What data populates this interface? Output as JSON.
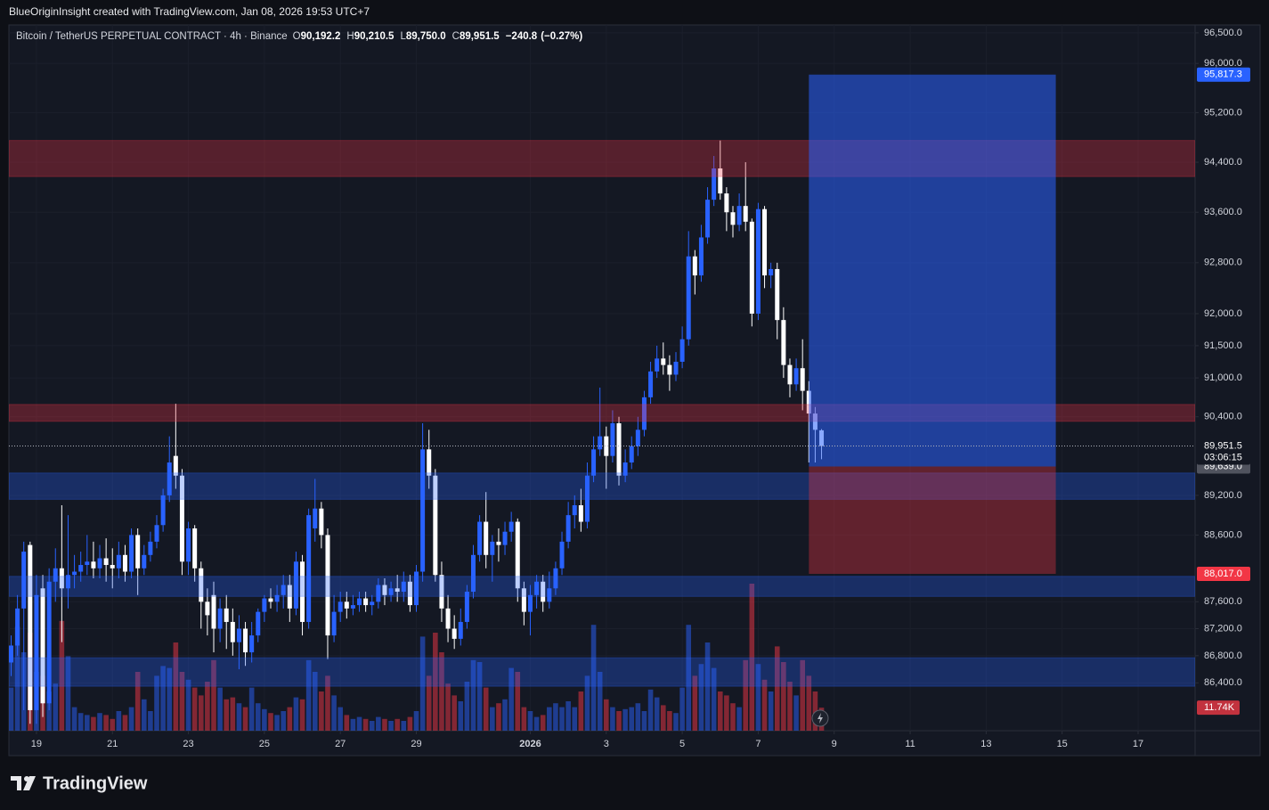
{
  "header": "BlueOriginInsight created with TradingView.com, Jan 08, 2026 19:53 UTC+7",
  "brand": "TradingView",
  "chart_data": {
    "type": "candlestick",
    "title": "Bitcoin / TetherUS PERPETUAL CONTRACT · 4h · Binance",
    "legend": [
      {
        "key": "O",
        "value": 90192.2,
        "label": "90,192.2"
      },
      {
        "key": "H",
        "value": 90210.5,
        "label": "90,210.5"
      },
      {
        "key": "L",
        "value": 89750.0,
        "label": "89,750.0"
      },
      {
        "key": "C",
        "value": 89951.5,
        "label": "89,951.5"
      }
    ],
    "change": {
      "value": -240.8,
      "label": "−240.8"
    },
    "change_pct": {
      "value": -0.27,
      "label": "(−0.27%)"
    },
    "up_color": "#2962ff",
    "down_color": "#ffffff",
    "open": [
      86700,
      86950,
      87500,
      88450,
      86000,
      87800,
      86100,
      87900,
      88100,
      87800,
      88000,
      88050,
      88150,
      88200,
      88100,
      88250,
      88150,
      88100,
      88300,
      88050,
      88600,
      88100,
      88300,
      88500,
      88750,
      89200,
      89800,
      89500,
      88200,
      88700,
      88100,
      87600,
      87700,
      87200,
      87500,
      87300,
      87000,
      87200,
      86850,
      87100,
      87450,
      87650,
      87600,
      87700,
      87850,
      87500,
      88200,
      87300,
      88700,
      89000,
      88600,
      87100,
      87450,
      87600,
      87500,
      87550,
      87650,
      87550,
      87600,
      87850,
      87700,
      87800,
      87750,
      87900,
      87550,
      88050,
      89900,
      89500,
      88000,
      87500,
      87200,
      87050,
      87300,
      87750,
      88300,
      88800,
      88300,
      88500,
      88450,
      88650,
      88800,
      87800,
      87450,
      87700,
      87900,
      87600,
      87800,
      88100,
      88500,
      88900,
      89050,
      88800,
      89500,
      89900,
      90100,
      89800,
      90300,
      89500,
      89700,
      89950,
      90200,
      90700,
      91100,
      91300,
      91200,
      91050,
      91250,
      91600,
      92900,
      92600,
      93200,
      93800,
      94300,
      93900,
      93600,
      93400,
      93700,
      93450,
      92000,
      93650,
      92600,
      92700,
      91900,
      91200,
      90900,
      91150,
      90800,
      90450,
      90192.2
    ],
    "high": [
      87100,
      87700,
      88500,
      88500,
      88000,
      88000,
      88100,
      88400,
      89050,
      88900,
      88300,
      88350,
      88600,
      88500,
      88450,
      88550,
      88400,
      88500,
      88450,
      88700,
      88700,
      88450,
      88650,
      88900,
      89300,
      90100,
      90600,
      89600,
      88800,
      88750,
      88200,
      87800,
      87900,
      87650,
      87700,
      87500,
      87400,
      87300,
      87300,
      87500,
      87700,
      87800,
      87850,
      88000,
      88000,
      88350,
      88300,
      89000,
      89450,
      89100,
      88700,
      87700,
      87750,
      87750,
      87700,
      87750,
      87750,
      87700,
      87950,
      87950,
      87900,
      88000,
      88050,
      88000,
      88150,
      90300,
      90200,
      89600,
      88200,
      87700,
      87400,
      87500,
      87850,
      88450,
      88900,
      89250,
      88600,
      88700,
      88800,
      88950,
      88850,
      87900,
      87850,
      88000,
      88000,
      88050,
      88200,
      88650,
      89100,
      89200,
      89300,
      89700,
      90100,
      90850,
      90250,
      90500,
      90400,
      89900,
      90100,
      90400,
      90800,
      91250,
      91500,
      91550,
      91350,
      91400,
      91800,
      93300,
      93000,
      93400,
      94000,
      94500,
      94750,
      94000,
      93700,
      93900,
      94400,
      93500,
      93750,
      93700,
      92800,
      92800,
      92100,
      91300,
      91300,
      91600,
      90950,
      90550,
      90210.5
    ],
    "low": [
      86500,
      86800,
      86000,
      85800,
      85800,
      85900,
      86000,
      87600,
      87000,
      87500,
      87800,
      87900,
      88000,
      87950,
      87950,
      87900,
      87800,
      87950,
      87900,
      87950,
      87700,
      88000,
      88200,
      88400,
      88650,
      89100,
      89300,
      88000,
      88000,
      87900,
      87200,
      87100,
      86850,
      87000,
      86900,
      86800,
      86600,
      86650,
      86700,
      87000,
      87300,
      87500,
      87450,
      87500,
      87300,
      87400,
      87100,
      87200,
      88500,
      88400,
      86750,
      87000,
      87300,
      87350,
      87400,
      87450,
      87450,
      87400,
      87500,
      87550,
      87600,
      87600,
      87600,
      87450,
      87450,
      87900,
      89300,
      87900,
      87300,
      87000,
      86900,
      86950,
      87200,
      87650,
      88200,
      88100,
      87900,
      88200,
      88300,
      88500,
      87600,
      87250,
      87100,
      87500,
      87450,
      87500,
      87700,
      88000,
      88400,
      88700,
      88650,
      88700,
      89400,
      89800,
      89300,
      89700,
      89350,
      89400,
      89600,
      89800,
      90100,
      90600,
      91000,
      91050,
      90800,
      90950,
      91150,
      91500,
      92300,
      92500,
      93100,
      93700,
      93800,
      93300,
      93200,
      93300,
      93300,
      91800,
      91900,
      92400,
      92400,
      91600,
      91000,
      90700,
      90800,
      90500,
      89700,
      89700,
      89750
    ],
    "close": [
      86950,
      87500,
      88350,
      86000,
      87700,
      86100,
      87900,
      88100,
      87800,
      88000,
      88050,
      88150,
      88200,
      88100,
      88250,
      88150,
      88100,
      88300,
      88050,
      88600,
      88100,
      88300,
      88500,
      88750,
      89200,
      89700,
      89500,
      88200,
      88700,
      88100,
      87600,
      87400,
      87200,
      87500,
      87300,
      87000,
      87200,
      86850,
      87100,
      87450,
      87650,
      87600,
      87700,
      87850,
      87500,
      88200,
      87300,
      88900,
      89000,
      88600,
      87100,
      87450,
      87600,
      87500,
      87550,
      87650,
      87550,
      87600,
      87850,
      87700,
      87800,
      87750,
      87900,
      87550,
      88050,
      89900,
      89500,
      88000,
      87500,
      87200,
      87050,
      87300,
      87750,
      88300,
      88800,
      88300,
      88500,
      88450,
      88650,
      88800,
      87800,
      87450,
      87700,
      87900,
      87600,
      87800,
      88100,
      88500,
      88900,
      89050,
      88800,
      89500,
      89900,
      90100,
      89800,
      90300,
      89500,
      89700,
      89950,
      90200,
      90700,
      91100,
      91300,
      91200,
      91050,
      91250,
      91600,
      92900,
      92600,
      93200,
      93800,
      94300,
      93900,
      93600,
      93400,
      93700,
      93450,
      92000,
      93650,
      92600,
      92700,
      91900,
      91200,
      90900,
      91150,
      90800,
      90450,
      90200,
      89951.5
    ],
    "volume": {
      "up_color": "rgba(41,98,255,0.5)",
      "down_color": "rgba(242,54,69,0.5)",
      "values": [
        22000,
        53000,
        40000,
        50000,
        30000,
        28000,
        20000,
        24000,
        56000,
        38000,
        12000,
        9000,
        8000,
        7000,
        9000,
        8000,
        6000,
        10000,
        8000,
        12000,
        30000,
        16000,
        10000,
        28000,
        33000,
        32000,
        45000,
        30000,
        26000,
        22000,
        18000,
        25000,
        36000,
        22000,
        16000,
        17000,
        14000,
        12000,
        22000,
        14000,
        11000,
        9000,
        8000,
        10000,
        12000,
        17000,
        16000,
        36000,
        30000,
        20000,
        28000,
        18000,
        12000,
        8000,
        6000,
        7000,
        6000,
        5000,
        7000,
        6000,
        5000,
        6000,
        5000,
        7000,
        10000,
        48000,
        28000,
        50000,
        40000,
        24000,
        18000,
        15000,
        25000,
        36000,
        35000,
        22000,
        12000,
        14000,
        16000,
        32000,
        30000,
        12000,
        10000,
        7000,
        8000,
        12000,
        14000,
        12000,
        15000,
        12000,
        20000,
        28000,
        54000,
        30000,
        16000,
        12000,
        10000,
        11000,
        12000,
        14000,
        10000,
        21000,
        17000,
        13000,
        10000,
        9000,
        22000,
        54000,
        28000,
        34000,
        45000,
        32000,
        20000,
        18000,
        14000,
        12000,
        36000,
        75000,
        34000,
        26000,
        20000,
        43000,
        35000,
        25000,
        18000,
        36000,
        28000,
        20000,
        11740
      ],
      "last_label": "11.74K"
    },
    "log_scale": true,
    "ylim": [
      85700,
      96630
    ],
    "yticks": [
      {
        "value": 96500,
        "label": "96,500.0"
      },
      {
        "value": 96000,
        "label": "96,000.0"
      },
      {
        "value": 95200,
        "label": "95,200.0"
      },
      {
        "value": 94400,
        "label": "94,400.0"
      },
      {
        "value": 93600,
        "label": "93,600.0"
      },
      {
        "value": 92800,
        "label": "92,800.0"
      },
      {
        "value": 92000,
        "label": "92,000.0"
      },
      {
        "value": 91500,
        "label": "91,500.0"
      },
      {
        "value": 91000,
        "label": "91,000.0"
      },
      {
        "value": 90400,
        "label": "90,400.0"
      },
      {
        "value": 89200,
        "label": "89,200.0"
      },
      {
        "value": 88600,
        "label": "88,600.0"
      },
      {
        "value": 87600,
        "label": "87,600.0"
      },
      {
        "value": 87200,
        "label": "87,200.0"
      },
      {
        "value": 86800,
        "label": "86,800.0"
      },
      {
        "value": 86400,
        "label": "86,400.0"
      }
    ],
    "xlim": [
      -0.35,
      187
    ],
    "xticks": [
      {
        "value": 4,
        "label": "19"
      },
      {
        "value": 16,
        "label": "21"
      },
      {
        "value": 28,
        "label": "23"
      },
      {
        "value": 40,
        "label": "25"
      },
      {
        "value": 52,
        "label": "27"
      },
      {
        "value": 64,
        "label": "29"
      },
      {
        "value": 82,
        "label": "2026"
      },
      {
        "value": 94,
        "label": "3"
      },
      {
        "value": 106,
        "label": "5"
      },
      {
        "value": 118,
        "label": "7"
      },
      {
        "value": 130,
        "label": "9"
      },
      {
        "value": 142,
        "label": "11"
      },
      {
        "value": 154,
        "label": "13"
      },
      {
        "value": 166,
        "label": "15"
      },
      {
        "value": 178,
        "label": "17"
      }
    ],
    "grid": true,
    "zones": [
      {
        "low": 94170,
        "high": 94750,
        "color": "rgba(242,54,69,0.3)"
      },
      {
        "low": 90330,
        "high": 90590,
        "color": "rgba(242,54,69,0.3)"
      },
      {
        "low": 89140,
        "high": 89540,
        "color": "rgba(41,98,255,0.3)"
      },
      {
        "low": 87680,
        "high": 87980,
        "color": "rgba(41,98,255,0.3)"
      },
      {
        "low": 86350,
        "high": 86770,
        "color": "rgba(41,98,255,0.3)"
      }
    ],
    "position": {
      "start": 126,
      "end": 165,
      "target": 95817.3,
      "target_label": "95,817.3",
      "entry": 89639.0,
      "entry_label": "89,639.0",
      "stop": 88017.0,
      "stop_label": "88,017.0",
      "profit_color": "rgba(41,98,255,0.55)",
      "loss_color": "rgba(242,54,69,0.35)"
    },
    "last_price": {
      "value": 89951.5,
      "label": "89,951.5",
      "countdown": "03:06:15"
    }
  }
}
